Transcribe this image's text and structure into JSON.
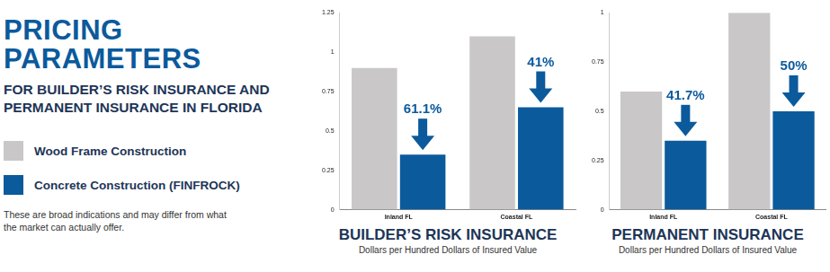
{
  "header": {
    "title": "PRICING PARAMETERS",
    "subtitle": "FOR BUILDER’S RISK INSURANCE AND PERMANENT INSURANCE IN FLORIDA",
    "note": "These are broad indications and may differ from what the market can actually offer."
  },
  "chart_data": [
    {
      "type": "bar",
      "title": "BUILDER’S RISK INSURANCE",
      "x_label": "Dollars per Hundred Dollars of Insured Value",
      "categories": [
        "Inland FL",
        "Coastal FL"
      ],
      "series": [
        {
          "name": "Wood Frame Construction",
          "color": "#c9c7c7",
          "values": [
            0.9,
            1.1
          ]
        },
        {
          "name": "Concrete Construction (FINFROCK)",
          "color": "#0b5a9c",
          "values": [
            0.35,
            0.65
          ]
        }
      ],
      "ylim": [
        0,
        1.25
      ],
      "yticks": [
        0,
        0.25,
        0.5,
        0.75,
        1,
        1.25
      ],
      "grid": false,
      "annotations": [
        {
          "category": "Inland FL",
          "series": "Concrete Construction (FINFROCK)",
          "text": "61.1%"
        },
        {
          "category": "Coastal FL",
          "series": "Concrete Construction (FINFROCK)",
          "text": "41%"
        }
      ]
    },
    {
      "type": "bar",
      "title": "PERMANENT INSURANCE",
      "x_label": "Dollars per Hundred Dollars of Insured Value",
      "categories": [
        "Inland FL",
        "Coastal FL"
      ],
      "series": [
        {
          "name": "Wood Frame Construction",
          "color": "#c9c7c7",
          "values": [
            0.6,
            1.0
          ]
        },
        {
          "name": "Concrete Construction (FINFROCK)",
          "color": "#0b5a9c",
          "values": [
            0.35,
            0.5
          ]
        }
      ],
      "ylim": [
        0,
        1
      ],
      "yticks": [
        0,
        0.25,
        0.5,
        0.75,
        1
      ],
      "grid": false,
      "annotations": [
        {
          "category": "Inland FL",
          "series": "Concrete Construction (FINFROCK)",
          "text": "41.7%"
        },
        {
          "category": "Coastal FL",
          "series": "Concrete Construction (FINFROCK)",
          "text": "50%"
        }
      ]
    }
  ]
}
